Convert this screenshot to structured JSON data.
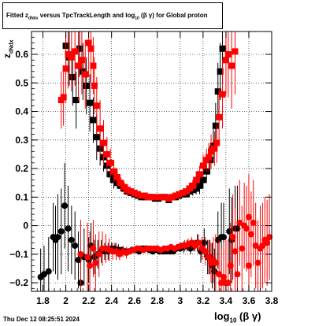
{
  "title": {
    "prefix": "Fitted",
    "z": "z",
    "z_sub": "dNdx",
    "middle": "versus TpcTrackLength and log",
    "log_sub": "10",
    "paren": "(β γ)",
    "suffix": "for Global proton"
  },
  "datestamp": "Thu Dec 12 08:25:51 2024",
  "xlabel": {
    "main": "log",
    "sub": "10",
    "tail": "(β γ)"
  },
  "ylabel": {
    "main": "z",
    "sub": "dNdx"
  },
  "colors": {
    "black_series": "#000000",
    "red_series": "#ff0000",
    "grid": "#000000",
    "frame": "#000000"
  },
  "chart_data": {
    "type": "scatter",
    "xlim": [
      1.7,
      3.8
    ],
    "ylim": [
      -0.23,
      0.68
    ],
    "grid": true,
    "xticks": [
      1.8,
      2.0,
      2.2,
      2.4,
      2.6,
      2.8,
      3.0,
      3.2,
      3.4,
      3.6,
      3.8
    ],
    "xtick_labels": [
      "1.8",
      "2",
      "2.2",
      "2.4",
      "2.6",
      "2.8",
      "3",
      "3.2",
      "3.4",
      "3.6",
      "3.8"
    ],
    "yticks": [
      -0.2,
      -0.1,
      0,
      0.1,
      0.2,
      0.3,
      0.4,
      0.5,
      0.6
    ],
    "ytick_labels": [
      "−0.2",
      "−0.1",
      "0",
      "0.1",
      "0.2",
      "0.3",
      "0.4",
      "0.5",
      "0.6"
    ],
    "series": [
      {
        "color": "#000000",
        "marker": "square",
        "points": [
          [
            2.0,
            0.63,
            0.1
          ],
          [
            2.03,
            0.59,
            0.1
          ],
          [
            2.06,
            0.52,
            0.1
          ],
          [
            2.09,
            0.44,
            0.1
          ],
          [
            2.12,
            0.62,
            0.1
          ],
          [
            2.15,
            0.54,
            0.1
          ],
          [
            2.18,
            0.49,
            0.1
          ],
          [
            2.21,
            0.43,
            0.1
          ],
          [
            2.24,
            0.37,
            0.08
          ],
          [
            2.27,
            0.31,
            0.08
          ],
          [
            2.3,
            0.27,
            0.06
          ],
          [
            2.33,
            0.24,
            0.05
          ],
          [
            2.36,
            0.21,
            0.04
          ],
          [
            2.39,
            0.18,
            0.03
          ],
          [
            2.42,
            0.16,
            0.03
          ],
          [
            2.45,
            0.15,
            0.02
          ],
          [
            2.48,
            0.14,
            0.02
          ],
          [
            2.51,
            0.13,
            0.02
          ],
          [
            2.54,
            0.12,
            0.01
          ],
          [
            2.57,
            0.115,
            0.01
          ],
          [
            2.6,
            0.11,
            0.01
          ],
          [
            2.63,
            0.105,
            0.01
          ],
          [
            2.66,
            0.1,
            0.01
          ],
          [
            2.69,
            0.1,
            0.01
          ],
          [
            2.72,
            0.1,
            0.01
          ],
          [
            2.75,
            0.1,
            0.01
          ],
          [
            2.78,
            0.095,
            0.01
          ],
          [
            2.81,
            0.095,
            0.01
          ],
          [
            2.84,
            0.1,
            0.01
          ],
          [
            2.87,
            0.1,
            0.01
          ],
          [
            2.9,
            0.09,
            0.01
          ],
          [
            2.93,
            0.1,
            0.01
          ],
          [
            2.96,
            0.1,
            0.01
          ],
          [
            2.99,
            0.105,
            0.01
          ],
          [
            3.02,
            0.11,
            0.01
          ],
          [
            3.05,
            0.11,
            0.01
          ],
          [
            3.08,
            0.12,
            0.02
          ],
          [
            3.11,
            0.125,
            0.02
          ],
          [
            3.14,
            0.13,
            0.02
          ],
          [
            3.17,
            0.14,
            0.03
          ],
          [
            3.2,
            0.16,
            0.03
          ],
          [
            3.23,
            0.19,
            0.04
          ],
          [
            3.26,
            0.23,
            0.05
          ],
          [
            3.29,
            0.28,
            0.06
          ],
          [
            3.31,
            0.35,
            0.08
          ],
          [
            3.33,
            0.47,
            0.1
          ],
          [
            3.35,
            0.54,
            0.1
          ],
          [
            3.37,
            0.62,
            0.12
          ]
        ]
      },
      {
        "color": "#ff0000",
        "marker": "square",
        "points": [
          [
            1.96,
            0.44,
            0.1
          ],
          [
            1.98,
            0.45,
            0.1
          ],
          [
            2.0,
            0.55,
            0.12
          ],
          [
            2.02,
            0.6,
            0.12
          ],
          [
            2.05,
            0.59,
            0.12
          ],
          [
            2.08,
            0.61,
            0.12
          ],
          [
            2.11,
            0.56,
            0.12
          ],
          [
            2.14,
            0.58,
            0.12
          ],
          [
            2.17,
            0.53,
            0.12
          ],
          [
            2.2,
            0.64,
            0.12
          ],
          [
            2.22,
            0.62,
            0.12
          ],
          [
            2.24,
            0.56,
            0.1
          ],
          [
            2.25,
            0.49,
            0.1
          ],
          [
            2.27,
            0.42,
            0.1
          ],
          [
            2.3,
            0.34,
            0.1
          ],
          [
            2.33,
            0.29,
            0.08
          ],
          [
            2.36,
            0.25,
            0.06
          ],
          [
            2.39,
            0.22,
            0.05
          ],
          [
            2.42,
            0.19,
            0.04
          ],
          [
            2.45,
            0.17,
            0.03
          ],
          [
            2.48,
            0.15,
            0.02
          ],
          [
            2.51,
            0.135,
            0.02
          ],
          [
            2.54,
            0.125,
            0.02
          ],
          [
            2.57,
            0.12,
            0.01
          ],
          [
            2.6,
            0.115,
            0.01
          ],
          [
            2.63,
            0.11,
            0.01
          ],
          [
            2.66,
            0.105,
            0.01
          ],
          [
            2.69,
            0.105,
            0.01
          ],
          [
            2.72,
            0.1,
            0.01
          ],
          [
            2.75,
            0.1,
            0.01
          ],
          [
            2.78,
            0.1,
            0.01
          ],
          [
            2.81,
            0.1,
            0.01
          ],
          [
            2.84,
            0.1,
            0.01
          ],
          [
            2.87,
            0.1,
            0.01
          ],
          [
            2.9,
            0.095,
            0.01
          ],
          [
            2.93,
            0.1,
            0.01
          ],
          [
            2.96,
            0.105,
            0.01
          ],
          [
            2.99,
            0.11,
            0.01
          ],
          [
            3.02,
            0.115,
            0.01
          ],
          [
            3.05,
            0.12,
            0.01
          ],
          [
            3.08,
            0.13,
            0.02
          ],
          [
            3.11,
            0.14,
            0.02
          ],
          [
            3.14,
            0.16,
            0.03
          ],
          [
            3.17,
            0.18,
            0.03
          ],
          [
            3.2,
            0.21,
            0.04
          ],
          [
            3.23,
            0.23,
            0.04
          ],
          [
            3.25,
            0.24,
            0.05
          ],
          [
            3.27,
            0.26,
            0.06
          ],
          [
            3.3,
            0.27,
            0.06
          ],
          [
            3.32,
            0.29,
            0.07
          ],
          [
            3.34,
            0.38,
            0.1
          ],
          [
            3.37,
            0.46,
            0.12
          ],
          [
            3.4,
            0.58,
            0.12
          ],
          [
            3.42,
            0.6,
            0.15
          ],
          [
            3.45,
            0.56,
            0.15
          ],
          [
            3.48,
            0.61,
            0.15
          ]
        ]
      },
      {
        "color": "#000000",
        "marker": "circle",
        "points": [
          [
            1.78,
            -0.18,
            0.1
          ],
          [
            1.81,
            -0.17,
            0.1
          ],
          [
            1.85,
            -0.16,
            0.12
          ],
          [
            1.89,
            -0.04,
            0.12
          ],
          [
            1.91,
            -0.05,
            0.12
          ],
          [
            1.93,
            -0.04,
            0.15
          ],
          [
            1.96,
            -0.02,
            0.15
          ],
          [
            1.99,
            0.07,
            0.15
          ],
          [
            2.02,
            -0.01,
            0.15
          ],
          [
            2.05,
            -0.05,
            0.12
          ],
          [
            2.08,
            -0.07,
            0.12
          ],
          [
            2.11,
            -0.12,
            0.1
          ],
          [
            2.13,
            -0.2,
            0.1
          ],
          [
            2.16,
            -0.11,
            0.1
          ],
          [
            2.2,
            -0.12,
            0.08
          ],
          [
            2.22,
            -0.07,
            0.08
          ],
          [
            2.25,
            -0.11,
            0.06
          ],
          [
            2.28,
            -0.1,
            0.05
          ],
          [
            2.31,
            -0.09,
            0.04
          ],
          [
            2.34,
            -0.09,
            0.03
          ],
          [
            2.37,
            -0.09,
            0.03
          ],
          [
            2.4,
            -0.08,
            0.02
          ],
          [
            2.43,
            -0.08,
            0.02
          ],
          [
            2.46,
            -0.085,
            0.02
          ],
          [
            2.49,
            -0.085,
            0.01
          ],
          [
            2.52,
            -0.09,
            0.01
          ],
          [
            2.55,
            -0.09,
            0.01
          ],
          [
            2.58,
            -0.085,
            0.01
          ],
          [
            2.61,
            -0.085,
            0.01
          ],
          [
            2.64,
            -0.09,
            0.01
          ],
          [
            2.67,
            -0.08,
            0.01
          ],
          [
            2.7,
            -0.08,
            0.01
          ],
          [
            2.73,
            -0.085,
            0.01
          ],
          [
            2.76,
            -0.09,
            0.01
          ],
          [
            2.79,
            -0.085,
            0.01
          ],
          [
            2.82,
            -0.09,
            0.01
          ],
          [
            2.85,
            -0.09,
            0.01
          ],
          [
            2.88,
            -0.09,
            0.01
          ],
          [
            2.91,
            -0.09,
            0.01
          ],
          [
            2.94,
            -0.09,
            0.01
          ],
          [
            2.97,
            -0.08,
            0.01
          ],
          [
            3.0,
            -0.08,
            0.01
          ],
          [
            3.03,
            -0.075,
            0.02
          ],
          [
            3.06,
            -0.07,
            0.02
          ],
          [
            3.09,
            -0.08,
            0.02
          ],
          [
            3.12,
            -0.07,
            0.02
          ],
          [
            3.15,
            -0.06,
            0.03
          ],
          [
            3.18,
            -0.09,
            0.04
          ],
          [
            3.21,
            -0.06,
            0.05
          ],
          [
            3.24,
            -0.11,
            0.06
          ],
          [
            3.26,
            -0.11,
            0.06
          ],
          [
            3.28,
            -0.14,
            0.08
          ],
          [
            3.3,
            -0.16,
            0.08
          ],
          [
            3.33,
            -0.05,
            0.1
          ],
          [
            3.36,
            -0.04,
            0.12
          ],
          [
            3.38,
            -0.04,
            0.12
          ],
          [
            3.43,
            -0.02,
            0.15
          ],
          [
            3.45,
            -0.05,
            0.15
          ],
          [
            3.48,
            -0.01,
            0.15
          ],
          [
            3.5,
            -0.01,
            0.15
          ]
        ]
      },
      {
        "color": "#ff0000",
        "marker": "circle",
        "points": [
          [
            2.13,
            -0.1,
            0.12
          ],
          [
            2.19,
            -0.11,
            0.12
          ],
          [
            2.21,
            -0.14,
            0.12
          ],
          [
            2.24,
            -0.08,
            0.1
          ],
          [
            2.26,
            -0.13,
            0.1
          ],
          [
            2.29,
            -0.1,
            0.08
          ],
          [
            2.32,
            -0.08,
            0.06
          ],
          [
            2.35,
            -0.08,
            0.05
          ],
          [
            2.38,
            -0.085,
            0.04
          ],
          [
            2.41,
            -0.09,
            0.03
          ],
          [
            2.44,
            -0.09,
            0.03
          ],
          [
            2.47,
            -0.1,
            0.02
          ],
          [
            2.5,
            -0.09,
            0.02
          ],
          [
            2.53,
            -0.095,
            0.02
          ],
          [
            2.56,
            -0.09,
            0.01
          ],
          [
            2.59,
            -0.085,
            0.01
          ],
          [
            2.62,
            -0.08,
            0.01
          ],
          [
            2.65,
            -0.08,
            0.01
          ],
          [
            2.68,
            -0.085,
            0.01
          ],
          [
            2.71,
            -0.08,
            0.01
          ],
          [
            2.74,
            -0.08,
            0.01
          ],
          [
            2.77,
            -0.08,
            0.01
          ],
          [
            2.8,
            -0.08,
            0.01
          ],
          [
            2.83,
            -0.085,
            0.01
          ],
          [
            2.86,
            -0.08,
            0.01
          ],
          [
            2.89,
            -0.08,
            0.01
          ],
          [
            2.92,
            -0.075,
            0.01
          ],
          [
            2.95,
            -0.08,
            0.01
          ],
          [
            2.98,
            -0.075,
            0.01
          ],
          [
            3.01,
            -0.07,
            0.01
          ],
          [
            3.04,
            -0.07,
            0.02
          ],
          [
            3.07,
            -0.065,
            0.02
          ],
          [
            3.1,
            -0.06,
            0.02
          ],
          [
            3.13,
            -0.07,
            0.02
          ],
          [
            3.16,
            -0.06,
            0.03
          ],
          [
            3.19,
            -0.08,
            0.04
          ],
          [
            3.22,
            -0.09,
            0.05
          ],
          [
            3.25,
            -0.11,
            0.06
          ],
          [
            3.27,
            -0.13,
            0.07
          ],
          [
            3.29,
            -0.12,
            0.08
          ],
          [
            3.31,
            -0.13,
            0.1
          ],
          [
            3.34,
            -0.17,
            0.12
          ],
          [
            3.36,
            -0.2,
            0.12
          ],
          [
            3.38,
            -0.18,
            0.12
          ],
          [
            3.4,
            -0.2,
            0.15
          ],
          [
            3.42,
            -0.2,
            0.15
          ],
          [
            3.44,
            -0.14,
            0.15
          ],
          [
            3.46,
            -0.04,
            0.15
          ],
          [
            3.48,
            -0.09,
            0.15
          ],
          [
            3.5,
            -0.17,
            0.15
          ],
          [
            3.52,
            0.01,
            0.15
          ],
          [
            3.54,
            -0.08,
            0.15
          ],
          [
            3.56,
            0.0,
            0.15
          ],
          [
            3.58,
            -0.01,
            0.15
          ],
          [
            3.6,
            -0.14,
            0.15
          ],
          [
            3.62,
            -0.03,
            0.15
          ],
          [
            3.64,
            0.01,
            0.15
          ],
          [
            3.66,
            -0.07,
            0.15
          ],
          [
            3.68,
            -0.13,
            0.15
          ],
          [
            3.7,
            -0.08,
            0.15
          ],
          [
            3.72,
            -0.07,
            0.15
          ],
          [
            3.74,
            -0.05,
            0.15
          ],
          [
            3.76,
            -0.06,
            0.15
          ],
          [
            3.78,
            -0.04,
            0.15
          ],
          [
            3.6,
            0.03,
            0.15
          ]
        ]
      }
    ]
  }
}
